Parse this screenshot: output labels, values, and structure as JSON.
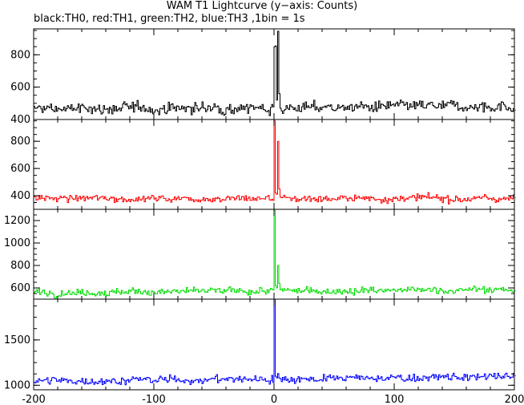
{
  "title": "WAM T1 Lightcurve (y−axis: Counts)",
  "subtitle": "black:TH0, red:TH1, green:TH2, blue:TH3 ,1bin = 1s",
  "chart_data": [
    {
      "type": "line",
      "name": "TH0",
      "color": "#000000",
      "xlim": [
        -200,
        200
      ],
      "ylim": [
        400,
        960
      ],
      "yticks": [
        400,
        600,
        800
      ],
      "baseline": 465,
      "noise": 20,
      "trend": 0.04,
      "spikes": [
        {
          "x": 0,
          "y": 850
        },
        {
          "x": 1,
          "y": 855
        },
        {
          "x": 2,
          "y": 520
        },
        {
          "x": 3,
          "y": 945
        },
        {
          "x": 4,
          "y": 560
        }
      ]
    },
    {
      "type": "line",
      "name": "TH1",
      "color": "#ff0000",
      "xlim": [
        -200,
        200
      ],
      "ylim": [
        300,
        960
      ],
      "yticks": [
        400,
        600,
        800
      ],
      "baseline": 380,
      "noise": 15,
      "trend": 0.0,
      "spikes": [
        {
          "x": 0,
          "y": 950
        },
        {
          "x": 1,
          "y": 420
        },
        {
          "x": 2,
          "y": 410
        },
        {
          "x": 3,
          "y": 800
        },
        {
          "x": 4,
          "y": 450
        }
      ]
    },
    {
      "type": "line",
      "name": "TH2",
      "color": "#00dd00",
      "xlim": [
        -200,
        200
      ],
      "ylim": [
        500,
        1300
      ],
      "yticks": [
        600,
        800,
        1000,
        1200
      ],
      "baseline": 560,
      "noise": 18,
      "trend": 0.06,
      "spikes": [
        {
          "x": 0,
          "y": 1290
        },
        {
          "x": 1,
          "y": 620
        },
        {
          "x": 2,
          "y": 600
        },
        {
          "x": 3,
          "y": 800
        },
        {
          "x": 4,
          "y": 640
        }
      ]
    },
    {
      "type": "line",
      "name": "TH3",
      "color": "#0000ff",
      "xlim": [
        -200,
        200
      ],
      "ylim": [
        950,
        1950
      ],
      "yticks": [
        1000,
        1500
      ],
      "baseline": 1045,
      "noise": 25,
      "trend": 0.12,
      "spikes": [
        {
          "x": 0,
          "y": 1950
        },
        {
          "x": 1,
          "y": 1100
        },
        {
          "x": 2,
          "y": 1080
        },
        {
          "x": 3,
          "y": 1130
        },
        {
          "x": 4,
          "y": 1080
        }
      ]
    }
  ],
  "xticks": [
    -200,
    -100,
    0,
    100,
    200
  ]
}
